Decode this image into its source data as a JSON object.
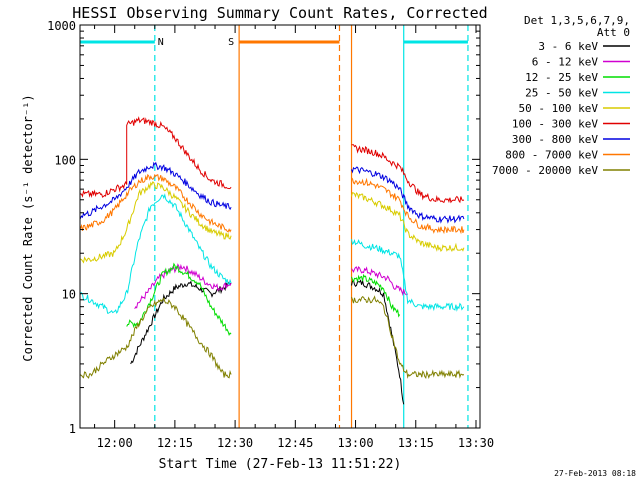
{
  "chart_data": {
    "type": "line",
    "title": "HESSI Observing Summary Count Rates, Corrected",
    "xlabel": "Start Time (27-Feb-13 11:51:22)",
    "ylabel": "Corrected Count Rate (s⁻¹ detector⁻¹)",
    "x_range": [
      "11:51:22",
      "13:31:00"
    ],
    "ylim": [
      1,
      1000
    ],
    "yscale": "log",
    "x_ticks": [
      "12:00",
      "12:15",
      "12:30",
      "12:45",
      "13:00",
      "13:15",
      "13:30"
    ],
    "y_ticks": [
      {
        "value": 1,
        "label": "1"
      },
      {
        "value": 10,
        "label": "10"
      },
      {
        "value": 100,
        "label": "100"
      },
      {
        "value": 1000,
        "label": "1000"
      }
    ],
    "legend": {
      "placement": "right",
      "header": [
        "Det 1,3,5,6,7,9,",
        "Att 0"
      ],
      "entries": [
        {
          "label": "3 - 6 keV",
          "color": "#000000"
        },
        {
          "label": "6 - 12 keV",
          "color": "#d000d0"
        },
        {
          "label": "12 - 25 keV",
          "color": "#00dd00"
        },
        {
          "label": "25 - 50 keV",
          "color": "#00e5e5"
        },
        {
          "label": "50 - 100 keV",
          "color": "#d8cc00"
        },
        {
          "label": "100 - 300 keV",
          "color": "#e00000"
        },
        {
          "label": "300 - 800 keV",
          "color": "#0000e0"
        },
        {
          "label": "800 - 7000 keV",
          "color": "#ff7700"
        },
        {
          "label": "7000 - 20000 keV",
          "color": "#808000"
        }
      ]
    },
    "flag_bars": [
      {
        "label": "N",
        "color": "#00e5e5",
        "start": "11:51",
        "end": "12:10",
        "style": "solid"
      },
      {
        "label": "",
        "color": "#00e5e5",
        "start": "13:12",
        "end": "13:28",
        "style": "solid"
      },
      {
        "label": "S",
        "color": "#ff7700",
        "start": "12:31",
        "end": "12:56",
        "style": "solid"
      }
    ],
    "markers": [
      {
        "time": "12:10",
        "color": "#00e5e5",
        "style": "dashed"
      },
      {
        "time": "12:31",
        "color": "#ff7700",
        "style": "solid"
      },
      {
        "time": "12:56",
        "color": "#ff7700",
        "style": "dashed"
      },
      {
        "time": "12:59",
        "color": "#ff7700",
        "style": "solid"
      },
      {
        "time": "13:12",
        "color": "#00e5e5",
        "style": "solid"
      },
      {
        "time": "13:28",
        "color": "#00e5e5",
        "style": "dashed"
      }
    ],
    "series": [
      {
        "name": "3 - 6 keV",
        "color": "#000000",
        "segments": [
          {
            "t": [
              "12:04",
              "12:06",
              "12:09",
              "12:12",
              "12:15",
              "12:18",
              "12:21",
              "12:24",
              "12:27",
              "12:29"
            ],
            "v": [
              3,
              4,
              6,
              9,
              11,
              12,
              11,
              10,
              11,
              12
            ]
          },
          {
            "t": [
              "12:59",
              "13:02",
              "13:05",
              "13:07",
              "13:09",
              "13:11",
              "13:12"
            ],
            "v": [
              12,
              12,
              11,
              10,
              5,
              2.5,
              1.5
            ]
          }
        ]
      },
      {
        "name": "6 - 12 keV",
        "color": "#d000d0",
        "segments": [
          {
            "t": [
              "12:05",
              "12:08",
              "12:11",
              "12:14",
              "12:17",
              "12:20",
              "12:23",
              "12:26",
              "12:29"
            ],
            "v": [
              8,
              10,
              13,
              15,
              16,
              14,
              12,
              11,
              12
            ]
          },
          {
            "t": [
              "12:59",
              "13:02",
              "13:05",
              "13:08",
              "13:10",
              "13:13"
            ],
            "v": [
              15,
              15,
              14,
              13,
              11,
              10
            ]
          }
        ]
      },
      {
        "name": "12 - 25 keV",
        "color": "#00dd00",
        "segments": [
          {
            "t": [
              "12:03",
              "12:06",
              "12:09",
              "12:12",
              "12:15",
              "12:18",
              "12:21",
              "12:24",
              "12:27",
              "12:29"
            ],
            "v": [
              6,
              6,
              9,
              14,
              16,
              14,
              12,
              8,
              6,
              5
            ]
          },
          {
            "t": [
              "12:59",
              "13:02",
              "13:05",
              "13:07",
              "13:09",
              "13:11"
            ],
            "v": [
              13,
              13,
              12,
              11,
              8,
              7
            ]
          }
        ]
      },
      {
        "name": "25 - 50 keV",
        "color": "#00e5e5",
        "segments": [
          {
            "t": [
              "11:51",
              "11:54",
              "11:57",
              "12:00",
              "12:03",
              "12:06",
              "12:09",
              "12:12",
              "12:15",
              "12:18",
              "12:21",
              "12:24",
              "12:27",
              "12:29"
            ],
            "v": [
              10,
              9,
              8,
              7,
              10,
              25,
              45,
              55,
              45,
              32,
              22,
              16,
              13,
              12
            ]
          },
          {
            "t": [
              "12:59",
              "13:02",
              "13:05",
              "13:07",
              "13:09",
              "13:11",
              "13:13",
              "13:16",
              "13:20",
              "13:24",
              "13:27"
            ],
            "v": [
              25,
              23,
              22,
              21,
              20,
              19,
              9,
              8,
              8,
              8,
              8
            ]
          }
        ]
      },
      {
        "name": "50 - 100 keV",
        "color": "#d8cc00",
        "segments": [
          {
            "t": [
              "11:51",
              "11:54",
              "11:57",
              "12:00",
              "12:03",
              "12:06",
              "12:09",
              "12:12",
              "12:15",
              "12:18",
              "12:21",
              "12:24",
              "12:27",
              "12:29"
            ],
            "v": [
              18,
              18,
              19,
              20,
              30,
              55,
              65,
              62,
              52,
              42,
              34,
              29,
              27,
              27
            ]
          },
          {
            "t": [
              "12:59",
              "13:02",
              "13:05",
              "13:07",
              "13:09",
              "13:11",
              "13:13",
              "13:16",
              "13:20",
              "13:24",
              "13:27"
            ],
            "v": [
              55,
              52,
              48,
              45,
              42,
              38,
              28,
              24,
              22,
              22,
              22
            ]
          }
        ]
      },
      {
        "name": "100 - 300 keV",
        "color": "#e00000",
        "segments": [
          {
            "t": [
              "11:51",
              "11:54",
              "11:57",
              "12:00",
              "12:03",
              "12:03",
              "12:06",
              "12:09",
              "12:12",
              "12:15",
              "12:18",
              "12:21",
              "12:24",
              "12:27",
              "12:29"
            ],
            "v": [
              55,
              55,
              55,
              60,
              65,
              180,
              195,
              190,
              175,
              145,
              110,
              85,
              70,
              65,
              62
            ]
          },
          {
            "t": [
              "12:59",
              "13:02",
              "13:05",
              "13:07",
              "13:09",
              "13:11",
              "13:13",
              "13:16",
              "13:20",
              "13:24",
              "13:27"
            ],
            "v": [
              122,
              118,
              112,
              105,
              95,
              88,
              70,
              55,
              50,
              50,
              50
            ]
          }
        ]
      },
      {
        "name": "300 - 800 keV",
        "color": "#0000e0",
        "segments": [
          {
            "t": [
              "11:51",
              "11:54",
              "11:57",
              "12:00",
              "12:03",
              "12:06",
              "12:09",
              "12:12",
              "12:15",
              "12:18",
              "12:21",
              "12:24",
              "12:27",
              "12:29"
            ],
            "v": [
              38,
              40,
              45,
              50,
              62,
              80,
              90,
              88,
              78,
              66,
              55,
              48,
              45,
              44
            ]
          },
          {
            "t": [
              "12:59",
              "13:02",
              "13:05",
              "13:07",
              "13:09",
              "13:11",
              "13:13",
              "13:16",
              "13:20",
              "13:24",
              "13:27"
            ],
            "v": [
              85,
              82,
              78,
              74,
              68,
              60,
              45,
              38,
              36,
              36,
              36
            ]
          }
        ]
      },
      {
        "name": "800 - 7000 keV",
        "color": "#ff7700",
        "segments": [
          {
            "t": [
              "11:51",
              "11:54",
              "11:57",
              "12:00",
              "12:03",
              "12:06",
              "12:09",
              "12:12",
              "12:15",
              "12:18",
              "12:21",
              "12:24",
              "12:27",
              "12:29"
            ],
            "v": [
              30,
              32,
              35,
              42,
              55,
              68,
              75,
              72,
              62,
              50,
              40,
              34,
              31,
              30
            ]
          },
          {
            "t": [
              "12:59",
              "13:02",
              "13:05",
              "13:07",
              "13:09",
              "13:11",
              "13:13",
              "13:16",
              "13:20",
              "13:24",
              "13:27"
            ],
            "v": [
              70,
              68,
              64,
              60,
              55,
              50,
              38,
              32,
              30,
              30,
              30
            ]
          }
        ]
      },
      {
        "name": "7000 - 20000 keV",
        "color": "#808000",
        "segments": [
          {
            "t": [
              "11:51",
              "11:54",
              "11:57",
              "12:00",
              "12:03",
              "12:06",
              "12:09",
              "12:12",
              "12:15",
              "12:18",
              "12:21",
              "12:24",
              "12:27",
              "12:29"
            ],
            "v": [
              2.5,
              2.5,
              3,
              3.5,
              4,
              6,
              8,
              9,
              8,
              6,
              4.5,
              3.5,
              2.5,
              2.5
            ]
          },
          {
            "t": [
              "12:59",
              "13:02",
              "13:05",
              "13:07",
              "13:09",
              "13:11",
              "13:13",
              "13:16",
              "13:20",
              "13:24",
              "13:27"
            ],
            "v": [
              9,
              9,
              9,
              8,
              5,
              3,
              2.5,
              2.5,
              2.5,
              2.5,
              2.5
            ]
          }
        ]
      }
    ]
  },
  "footer": {
    "timestamp": "27-Feb-2013 08:18"
  }
}
